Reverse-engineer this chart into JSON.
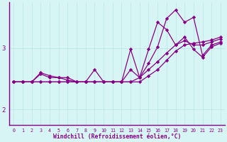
{
  "xlabel": "Windchill (Refroidissement éolien,°C)",
  "bg_color": "#d8f5f5",
  "line_color": "#880088",
  "xlim": [
    -0.5,
    23.5
  ],
  "ylim": [
    1.75,
    3.75
  ],
  "yticks": [
    2,
    3
  ],
  "xticks": [
    0,
    1,
    2,
    3,
    4,
    5,
    6,
    7,
    8,
    9,
    10,
    11,
    12,
    13,
    14,
    15,
    16,
    17,
    18,
    19,
    20,
    21,
    22,
    23
  ],
  "series": [
    [
      2.45,
      2.45,
      2.45,
      2.45,
      2.45,
      2.45,
      2.45,
      2.45,
      2.45,
      2.45,
      2.45,
      2.45,
      2.45,
      2.45,
      2.45,
      2.55,
      2.65,
      2.8,
      2.95,
      3.05,
      3.08,
      3.1,
      3.13,
      3.18
    ],
    [
      2.45,
      2.45,
      2.45,
      2.58,
      2.52,
      2.52,
      2.52,
      2.45,
      2.45,
      2.45,
      2.45,
      2.45,
      2.45,
      2.45,
      2.52,
      2.65,
      2.78,
      2.92,
      3.05,
      3.12,
      3.05,
      3.05,
      3.1,
      3.15
    ],
    [
      2.45,
      2.45,
      2.45,
      2.45,
      2.45,
      2.45,
      2.45,
      2.45,
      2.45,
      2.45,
      2.45,
      2.45,
      2.45,
      2.65,
      2.52,
      2.75,
      3.02,
      3.48,
      3.62,
      3.42,
      3.5,
      2.88,
      3.05,
      3.1
    ],
    [
      2.45,
      2.45,
      2.45,
      2.6,
      2.55,
      2.52,
      2.48,
      2.45,
      2.45,
      2.65,
      2.45,
      2.45,
      2.45,
      2.98,
      2.52,
      2.98,
      3.42,
      3.3,
      3.05,
      3.18,
      2.98,
      2.85,
      3.02,
      3.08
    ]
  ]
}
